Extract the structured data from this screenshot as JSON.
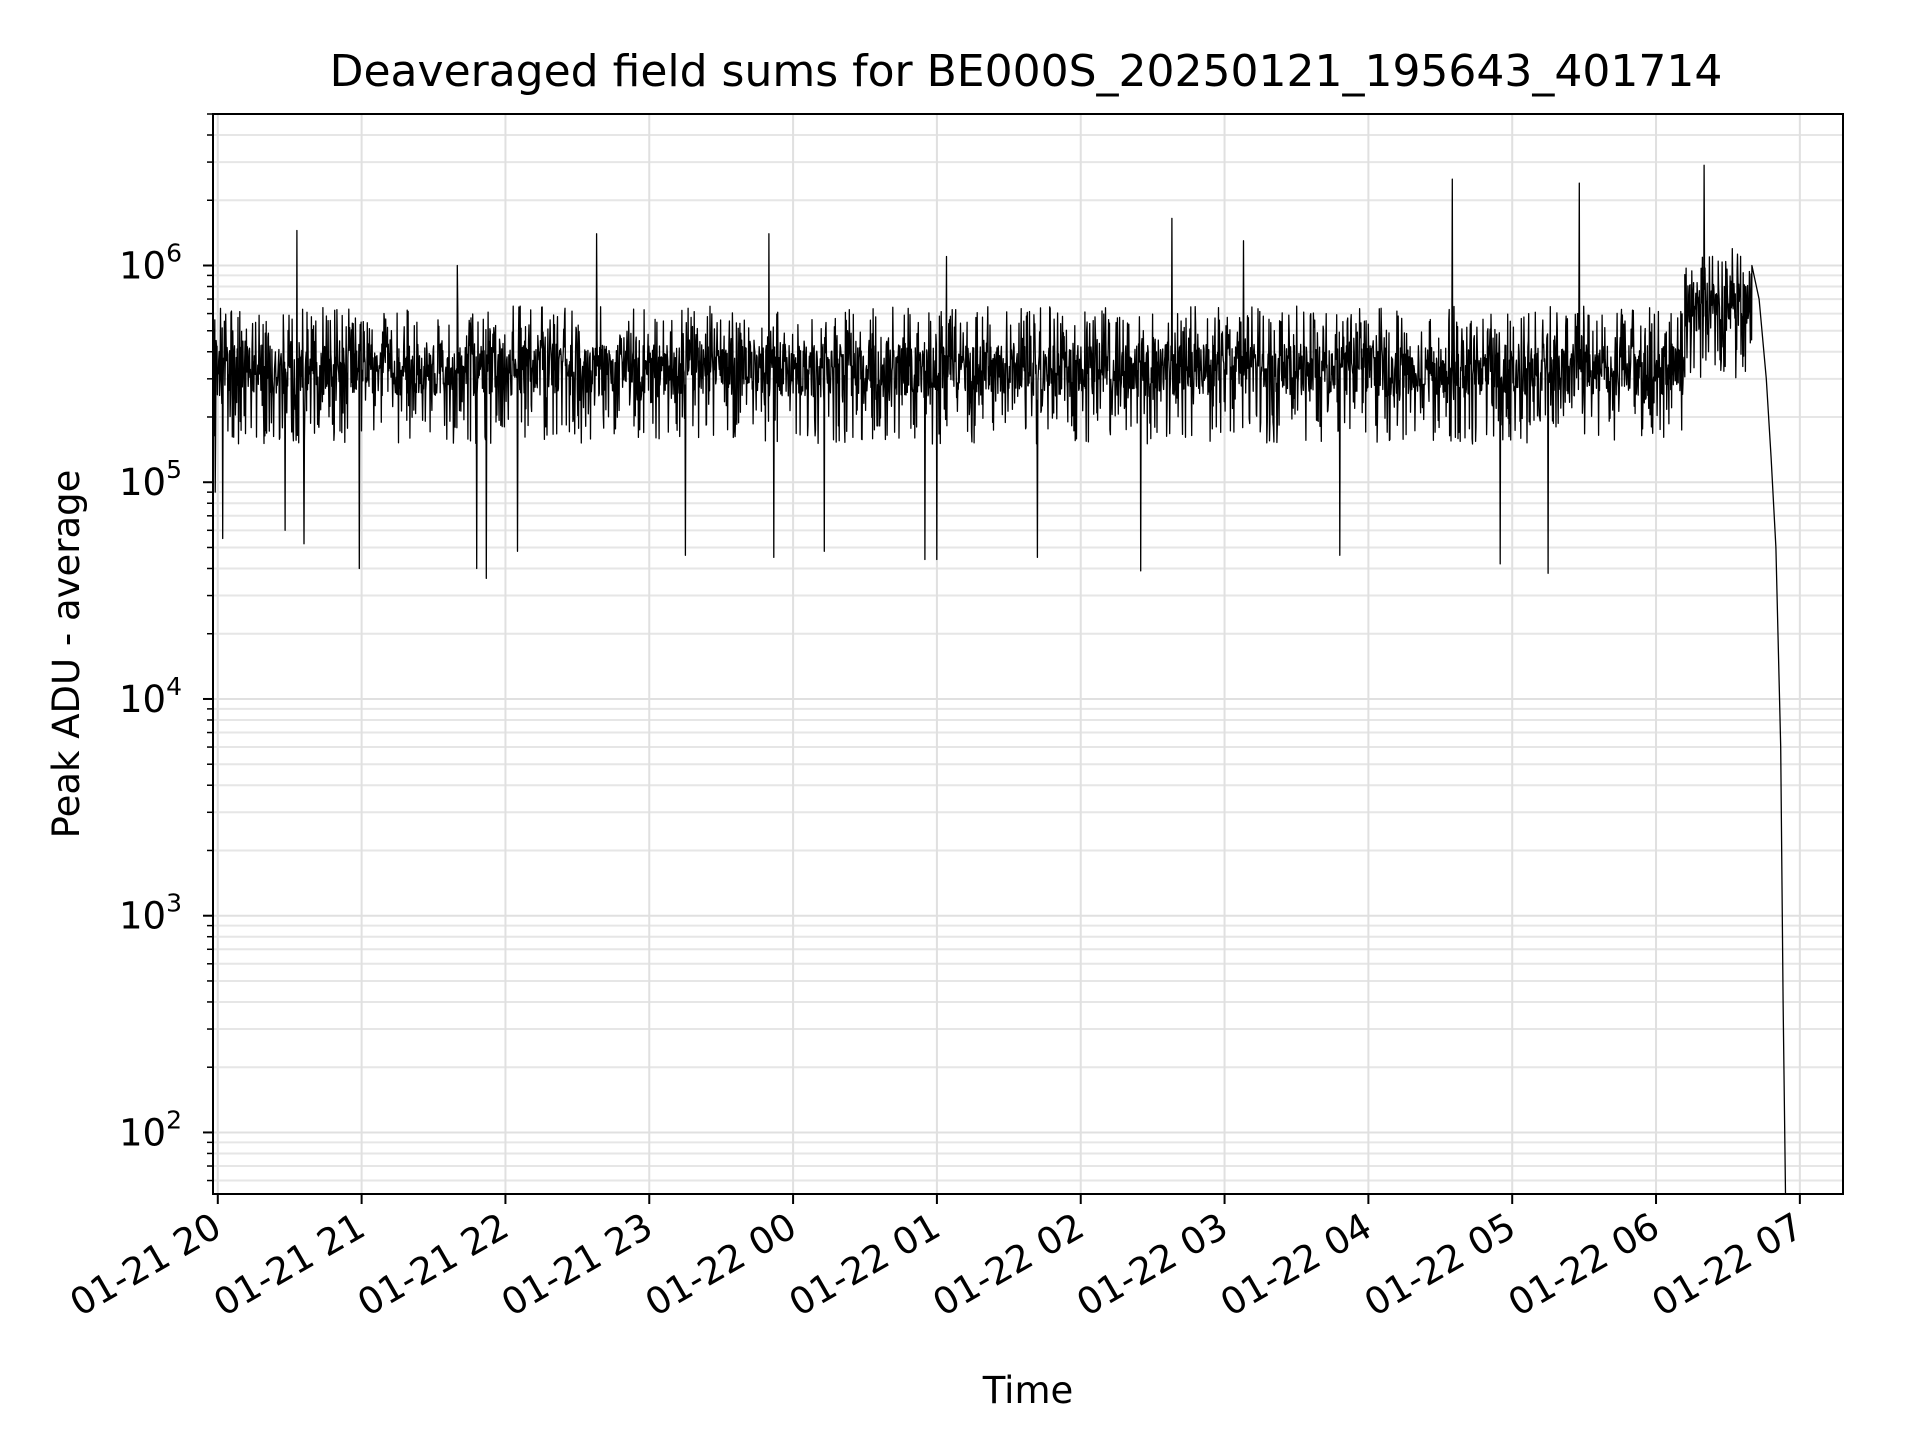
{
  "chart_data": {
    "type": "line",
    "title": "Deaveraged field sums for BE000S_20250121_195643_401714",
    "xlabel": "Time",
    "ylabel": "Peak ADU - average",
    "x_axis": {
      "type": "time",
      "range": [
        "2025-01-21 19:58",
        "2025-01-22 07:18"
      ],
      "tick_labels": [
        "01-21 20",
        "01-21 21",
        "01-21 22",
        "01-21 23",
        "01-22 00",
        "01-22 01",
        "01-22 02",
        "01-22 03",
        "01-22 04",
        "01-22 05",
        "01-22 06",
        "01-22 07"
      ]
    },
    "y_axis": {
      "scale": "log",
      "range": [
        52,
        5000000
      ],
      "tick_labels": [
        {
          "base": "10",
          "exp": "2"
        },
        {
          "base": "10",
          "exp": "3"
        },
        {
          "base": "10",
          "exp": "4"
        },
        {
          "base": "10",
          "exp": "5"
        },
        {
          "base": "10",
          "exp": "6"
        }
      ]
    },
    "grid": true,
    "series": [
      {
        "color": "#000000",
        "baseline_segments": [
          {
            "start": "2025-01-21 19:58",
            "end": "2025-01-22 06:12",
            "typical": 330000,
            "low": 150000,
            "high": 650000
          },
          {
            "start": "2025-01-22 06:12",
            "end": "2025-01-22 06:40",
            "typical": 650000,
            "low": 300000,
            "high": 1200000
          }
        ],
        "peaks": [
          {
            "x": "2025-01-21 20:33",
            "y": 1450000
          },
          {
            "x": "2025-01-21 21:40",
            "y": 1000000
          },
          {
            "x": "2025-01-21 22:38",
            "y": 1400000
          },
          {
            "x": "2025-01-21 23:50",
            "y": 1400000
          },
          {
            "x": "2025-01-22 01:04",
            "y": 1100000
          },
          {
            "x": "2025-01-22 02:38",
            "y": 1650000
          },
          {
            "x": "2025-01-22 03:08",
            "y": 1300000
          },
          {
            "x": "2025-01-22 04:35",
            "y": 2500000
          },
          {
            "x": "2025-01-22 05:28",
            "y": 2400000
          },
          {
            "x": "2025-01-22 06:20",
            "y": 2900000
          }
        ],
        "troughs": [
          {
            "x": "2025-01-21 19:59",
            "y": 90000
          },
          {
            "x": "2025-01-21 20:02",
            "y": 55000
          },
          {
            "x": "2025-01-21 20:28",
            "y": 60000
          },
          {
            "x": "2025-01-21 20:36",
            "y": 52000
          },
          {
            "x": "2025-01-21 20:59",
            "y": 40000
          },
          {
            "x": "2025-01-21 21:48",
            "y": 40000
          },
          {
            "x": "2025-01-21 21:52",
            "y": 36000
          },
          {
            "x": "2025-01-21 22:05",
            "y": 48000
          },
          {
            "x": "2025-01-21 23:15",
            "y": 46000
          },
          {
            "x": "2025-01-21 23:52",
            "y": 45000
          },
          {
            "x": "2025-01-22 00:13",
            "y": 48000
          },
          {
            "x": "2025-01-22 00:55",
            "y": 44000
          },
          {
            "x": "2025-01-22 01:00",
            "y": 44000
          },
          {
            "x": "2025-01-22 01:42",
            "y": 45000
          },
          {
            "x": "2025-01-22 02:25",
            "y": 39000
          },
          {
            "x": "2025-01-22 03:48",
            "y": 46000
          },
          {
            "x": "2025-01-22 04:55",
            "y": 42000
          },
          {
            "x": "2025-01-22 05:15",
            "y": 38000
          }
        ],
        "dropoff": [
          {
            "x": "2025-01-22 06:40",
            "y": 1000000
          },
          {
            "x": "2025-01-22 06:43",
            "y": 700000
          },
          {
            "x": "2025-01-22 06:46",
            "y": 300000
          },
          {
            "x": "2025-01-22 06:48",
            "y": 130000
          },
          {
            "x": "2025-01-22 06:50",
            "y": 50000
          },
          {
            "x": "2025-01-22 06:52",
            "y": 6000
          },
          {
            "x": "2025-01-22 06:53",
            "y": 400
          },
          {
            "x": "2025-01-22 06:54",
            "y": 52
          }
        ]
      }
    ]
  }
}
